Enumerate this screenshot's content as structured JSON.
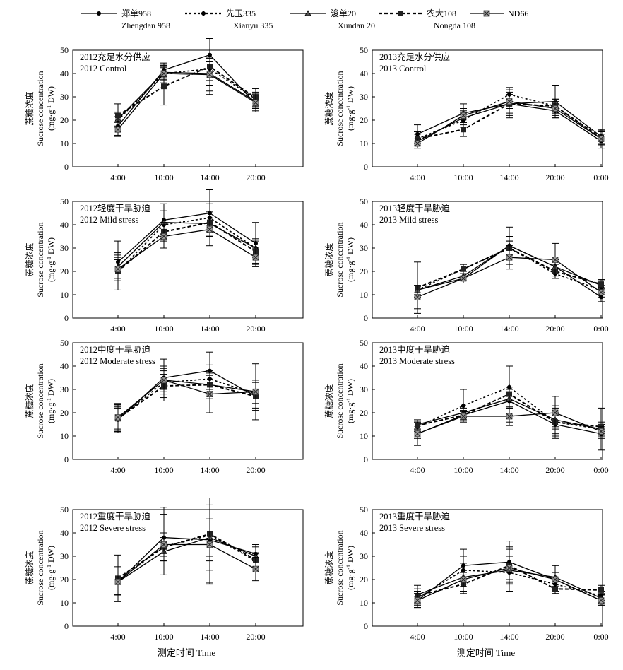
{
  "legend": [
    {
      "cn": "郑单958",
      "en": "Zhengdan 958",
      "dash": "",
      "marker": "circle"
    },
    {
      "cn": "先玉335",
      "en": "Xianyu 335",
      "dash": "3,3",
      "marker": "diamond"
    },
    {
      "cn": "浚单20",
      "en": "Xundan 20",
      "dash": "",
      "marker": "triangle"
    },
    {
      "cn": "农大108",
      "en": "Nongda 108",
      "dash": "5,3",
      "marker": "square"
    },
    {
      "cn": "ND66",
      "en": "",
      "dash": "",
      "marker": "xbox"
    }
  ],
  "ylabel_cn": "蔗糖浓度",
  "ylabel_en1": "Sucrose concentration",
  "ylabel_en2_pre": "(mg·g",
  "ylabel_en2_sup": "-1",
  "ylabel_en2_post": " DW)",
  "xlabel": "测定时间 Time",
  "chart_data": [
    {
      "type": "line",
      "row": 0,
      "col": 0,
      "title_cn": "2012充足水分供应",
      "title_en": "2012 Control",
      "categories": [
        "4:00",
        "10:00",
        "14:00",
        "20:00"
      ],
      "ylim": [
        0,
        50
      ],
      "yticks": [
        0,
        10,
        20,
        30,
        40,
        50
      ],
      "series": [
        {
          "name": "Zhengdan 958",
          "values": [
            17.5,
            41.5,
            48,
            27
          ],
          "err": [
            4,
            3,
            8,
            3
          ]
        },
        {
          "name": "Xianyu 335",
          "values": [
            20,
            40,
            42,
            29
          ],
          "err": [
            3,
            3,
            5,
            3
          ]
        },
        {
          "name": "Xundan 20",
          "values": [
            20.5,
            40.5,
            40,
            28
          ],
          "err": [
            3,
            3,
            5,
            3
          ]
        },
        {
          "name": "Nongda 108",
          "values": [
            22,
            34.5,
            43,
            29.5
          ],
          "err": [
            5,
            8,
            12,
            4
          ]
        },
        {
          "name": "ND66",
          "values": [
            16,
            40,
            39.5,
            27.5
          ],
          "err": [
            3,
            4,
            7,
            4
          ]
        }
      ]
    },
    {
      "type": "line",
      "row": 0,
      "col": 1,
      "title_cn": "2013充足水分供应",
      "title_en": "2013  Control",
      "categories": [
        "4:00",
        "10:00",
        "14:00",
        "20:00",
        "0:00"
      ],
      "ylim": [
        0,
        50
      ],
      "yticks": [
        0,
        10,
        20,
        30,
        40,
        50
      ],
      "series": [
        {
          "name": "Zhengdan 958",
          "values": [
            14,
            23,
            27,
            24,
            11
          ],
          "err": [
            4,
            4,
            6,
            3,
            3
          ]
        },
        {
          "name": "Xianyu 335",
          "values": [
            12,
            20,
            31,
            26,
            12
          ],
          "err": [
            3,
            3,
            3,
            3,
            3
          ]
        },
        {
          "name": "Xundan 20",
          "values": [
            11,
            21,
            27,
            28,
            13
          ],
          "err": [
            3,
            3,
            4,
            7,
            3
          ]
        },
        {
          "name": "Nongda 108",
          "values": [
            12,
            16,
            27,
            26,
            12.5
          ],
          "err": [
            3,
            3,
            5,
            3,
            3
          ]
        },
        {
          "name": "ND66",
          "values": [
            10,
            22,
            28,
            25,
            12
          ],
          "err": [
            2,
            3,
            3,
            3,
            3
          ]
        }
      ]
    },
    {
      "type": "line",
      "row": 1,
      "col": 0,
      "title_cn": "2012轻度干旱胁迫",
      "title_en": "2012 Mild stress",
      "categories": [
        "4:00",
        "10:00",
        "14:00",
        "20:00"
      ],
      "ylim": [
        0,
        50
      ],
      "yticks": [
        0,
        10,
        20,
        30,
        40,
        50
      ],
      "series": [
        {
          "name": "Zhengdan 958",
          "values": [
            24,
            42,
            45,
            32
          ],
          "err": [
            9,
            7,
            10,
            9
          ]
        },
        {
          "name": "Xianyu 335",
          "values": [
            20,
            40,
            43,
            30
          ],
          "err": [
            5,
            5,
            6,
            4
          ]
        },
        {
          "name": "Xundan 20",
          "values": [
            22,
            41,
            40.5,
            30
          ],
          "err": [
            5,
            5,
            5,
            3
          ]
        },
        {
          "name": "Nongda 108",
          "values": [
            20,
            37,
            41,
            28.5
          ],
          "err": [
            8,
            4,
            4,
            5
          ]
        },
        {
          "name": "ND66",
          "values": [
            21,
            35,
            38,
            26
          ],
          "err": [
            5,
            5,
            7,
            4
          ]
        }
      ]
    },
    {
      "type": "line",
      "row": 1,
      "col": 1,
      "title_cn": "2013轻度干旱胁迫",
      "title_en": "2013 Mild stress",
      "categories": [
        "4:00",
        "10:00",
        "14:00",
        "20:00",
        "0:00"
      ],
      "ylim": [
        0,
        50
      ],
      "yticks": [
        0,
        10,
        20,
        30,
        40,
        50
      ],
      "series": [
        {
          "name": "Zhengdan 958",
          "values": [
            12,
            17,
            31,
            22,
            9
          ],
          "err": [
            3,
            2,
            8,
            3,
            2
          ]
        },
        {
          "name": "Xianyu 335",
          "values": [
            12,
            21,
            30,
            19,
            12
          ],
          "err": [
            2,
            2,
            3,
            2,
            2
          ]
        },
        {
          "name": "Xundan 20",
          "values": [
            12,
            18,
            31,
            22,
            14
          ],
          "err": [
            2,
            2,
            4,
            3,
            2
          ]
        },
        {
          "name": "Nongda 108",
          "values": [
            13,
            21,
            30,
            20,
            14.5
          ],
          "err": [
            11,
            2,
            3,
            3,
            2
          ]
        },
        {
          "name": "ND66",
          "values": [
            9,
            17,
            26,
            25,
            11
          ],
          "err": [
            5,
            2,
            5,
            7,
            2
          ]
        }
      ]
    },
    {
      "type": "line",
      "row": 2,
      "col": 0,
      "title_cn": "2012中度干旱胁迫",
      "title_en": "2012 Moderate stress",
      "categories": [
        "4:00",
        "10:00",
        "14:00",
        "20:00"
      ],
      "ylim": [
        0,
        50
      ],
      "yticks": [
        0,
        10,
        20,
        30,
        40,
        50
      ],
      "series": [
        {
          "name": "Zhengdan 958",
          "values": [
            17,
            35,
            38,
            27
          ],
          "err": [
            5,
            5,
            8,
            6
          ]
        },
        {
          "name": "Xianyu 335",
          "values": [
            17.5,
            33,
            34.5,
            28
          ],
          "err": [
            5,
            5,
            6,
            6
          ]
        },
        {
          "name": "Xundan 20",
          "values": [
            18,
            34,
            32,
            29
          ],
          "err": [
            5,
            5,
            5,
            5
          ]
        },
        {
          "name": "Nongda 108",
          "values": [
            17.5,
            31.5,
            32,
            27
          ],
          "err": [
            6,
            5,
            6,
            6
          ]
        },
        {
          "name": "ND66",
          "values": [
            18,
            34,
            28,
            29
          ],
          "err": [
            6,
            9,
            8,
            12
          ]
        }
      ]
    },
    {
      "type": "line",
      "row": 2,
      "col": 1,
      "title_cn": "2013中度干旱胁迫",
      "title_en": "2013 Moderate stress",
      "categories": [
        "4:00",
        "10:00",
        "14:00",
        "20:00",
        "0:00"
      ],
      "ylim": [
        0,
        50
      ],
      "yticks": [
        0,
        10,
        20,
        30,
        40,
        50
      ],
      "series": [
        {
          "name": "Zhengdan 958",
          "values": [
            11,
            19,
            25,
            15,
            11
          ],
          "err": [
            5,
            2,
            6,
            4,
            2
          ]
        },
        {
          "name": "Xianyu 335",
          "values": [
            14,
            23,
            31,
            16,
            13
          ],
          "err": [
            2,
            7,
            9,
            7,
            9
          ]
        },
        {
          "name": "Xundan 20",
          "values": [
            15,
            20,
            26,
            17,
            13
          ],
          "err": [
            2,
            2,
            4,
            3,
            2
          ]
        },
        {
          "name": "Nongda 108",
          "values": [
            14.5,
            19,
            28,
            16,
            14
          ],
          "err": [
            2,
            2,
            12,
            6,
            2
          ]
        },
        {
          "name": "ND66",
          "values": [
            11,
            18.5,
            18.5,
            20,
            12
          ],
          "err": [
            2,
            2,
            4,
            7,
            2
          ]
        }
      ]
    },
    {
      "type": "line",
      "row": 3,
      "col": 0,
      "title_cn": "2012重度干旱胁迫",
      "title_en": "2012 Severe stress",
      "categories": [
        "4:00",
        "10:00",
        "14:00",
        "20:00"
      ],
      "ylim": [
        0,
        50
      ],
      "yticks": [
        0,
        10,
        20,
        30,
        40,
        50
      ],
      "series": [
        {
          "name": "Zhengdan 958",
          "values": [
            19,
            38,
            37,
            31
          ],
          "err": [
            6,
            13,
            13,
            3
          ]
        },
        {
          "name": "Xianyu 335",
          "values": [
            19.5,
            34,
            39,
            28
          ],
          "err": [
            6,
            6,
            11,
            3
          ]
        },
        {
          "name": "Xundan 20",
          "values": [
            19,
            32,
            38,
            30
          ],
          "err": [
            6,
            4,
            8,
            5
          ]
        },
        {
          "name": "Nongda 108",
          "values": [
            20.5,
            34,
            39.5,
            28.5
          ],
          "err": [
            10,
            4,
            21,
            3
          ]
        },
        {
          "name": "ND66",
          "values": [
            19,
            35,
            35,
            24.5
          ],
          "err": [
            6,
            13,
            17,
            5
          ]
        }
      ]
    },
    {
      "type": "line",
      "row": 3,
      "col": 1,
      "title_cn": "2013重度干旱胁迫",
      "title_en": "2013 Severe stress",
      "categories": [
        "4:00",
        "10:00",
        "14:00",
        "20:00",
        "0:00"
      ],
      "ylim": [
        0,
        50
      ],
      "yticks": [
        0,
        10,
        20,
        30,
        40,
        50
      ],
      "series": [
        {
          "name": "Zhengdan 958",
          "values": [
            11,
            26,
            27.5,
            20,
            11
          ],
          "err": [
            3,
            7,
            9,
            6,
            2
          ]
        },
        {
          "name": "Xianyu 335",
          "values": [
            12,
            24,
            23,
            18,
            13
          ],
          "err": [
            3,
            6,
            4,
            3,
            2
          ]
        },
        {
          "name": "Xundan 20",
          "values": [
            13.5,
            21,
            24,
            21,
            12
          ],
          "err": [
            4,
            6,
            9,
            5,
            2
          ]
        },
        {
          "name": "Nongda 108",
          "values": [
            13,
            18,
            26,
            16,
            15.5
          ],
          "err": [
            3,
            4,
            8,
            2,
            2
          ]
        },
        {
          "name": "ND66",
          "values": [
            11,
            20,
            25,
            20,
            11
          ],
          "err": [
            3,
            3,
            5,
            3,
            2
          ]
        }
      ]
    }
  ]
}
